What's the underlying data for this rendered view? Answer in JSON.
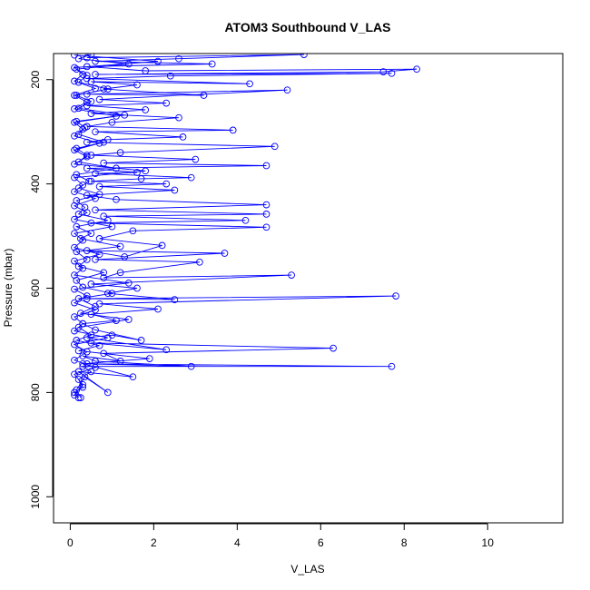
{
  "chart_data": {
    "type": "line",
    "title": "ATOM3 Southbound V_LAS",
    "xlabel": "V_LAS",
    "ylabel": "Pressure (mbar)",
    "xlim": [
      -0.4,
      11.8
    ],
    "ylim": [
      1050,
      150
    ],
    "y_inverted": true,
    "x_ticks": [
      0,
      2,
      4,
      6,
      8,
      10
    ],
    "y_ticks": [
      200,
      400,
      600,
      800,
      1000
    ],
    "grid": false,
    "marker": "open-circle",
    "series_color": "#0000ff",
    "series": [
      {
        "points": [
          [
            0.2,
            810
          ],
          [
            0.1,
            800
          ],
          [
            0.3,
            790
          ],
          [
            0.2,
            775
          ],
          [
            0.5,
            760
          ],
          [
            0.3,
            750
          ],
          [
            7.7,
            750
          ],
          [
            0.4,
            745
          ],
          [
            2.9,
            750
          ],
          [
            0.6,
            740
          ],
          [
            0.3,
            730
          ],
          [
            1.2,
            740
          ],
          [
            0.8,
            725
          ],
          [
            6.3,
            715
          ],
          [
            0.5,
            705
          ],
          [
            2.3,
            718
          ],
          [
            0.4,
            695
          ],
          [
            1.0,
            690
          ],
          [
            1.7,
            700
          ],
          [
            0.6,
            680
          ],
          [
            0.3,
            668
          ],
          [
            1.1,
            662
          ],
          [
            0.5,
            650
          ],
          [
            2.1,
            640
          ],
          [
            0.7,
            630
          ],
          [
            7.8,
            615
          ],
          [
            0.4,
            620
          ],
          [
            2.5,
            622
          ],
          [
            0.9,
            610
          ],
          [
            1.6,
            600
          ],
          [
            0.5,
            592
          ],
          [
            5.3,
            575
          ],
          [
            0.8,
            580
          ],
          [
            1.2,
            570
          ],
          [
            3.1,
            550
          ],
          [
            0.6,
            545
          ],
          [
            3.7,
            533
          ],
          [
            0.4,
            528
          ],
          [
            1.3,
            540
          ],
          [
            2.2,
            518
          ],
          [
            0.7,
            505
          ],
          [
            1.5,
            490
          ],
          [
            4.7,
            483
          ],
          [
            0.5,
            475
          ],
          [
            4.2,
            470
          ],
          [
            0.8,
            462
          ],
          [
            4.7,
            458
          ],
          [
            0.6,
            450
          ],
          [
            4.7,
            440
          ],
          [
            1.1,
            430
          ],
          [
            0.4,
            422
          ],
          [
            2.5,
            412
          ],
          [
            0.7,
            405
          ],
          [
            2.3,
            400
          ],
          [
            0.5,
            395
          ],
          [
            1.7,
            390
          ],
          [
            2.9,
            388
          ],
          [
            0.6,
            380
          ],
          [
            1.6,
            378
          ],
          [
            0.4,
            370
          ],
          [
            4.7,
            365
          ],
          [
            0.8,
            360
          ],
          [
            3.0,
            353
          ],
          [
            0.5,
            345
          ],
          [
            1.2,
            340
          ],
          [
            4.9,
            328
          ],
          [
            0.4,
            320
          ],
          [
            0.9,
            315
          ],
          [
            2.7,
            310
          ],
          [
            0.6,
            300
          ],
          [
            3.9,
            297
          ],
          [
            0.4,
            290
          ],
          [
            1.0,
            282
          ],
          [
            2.6,
            273
          ],
          [
            0.5,
            265
          ],
          [
            1.8,
            258
          ],
          [
            0.4,
            250
          ],
          [
            2.3,
            245
          ],
          [
            0.7,
            238
          ],
          [
            5.2,
            220
          ],
          [
            0.4,
            228
          ],
          [
            3.2,
            230
          ],
          [
            0.8,
            218
          ],
          [
            1.6,
            210
          ],
          [
            0.5,
            204
          ],
          [
            4.3,
            208
          ],
          [
            0.4,
            198
          ],
          [
            2.4,
            193
          ],
          [
            7.7,
            188
          ],
          [
            0.6,
            190
          ],
          [
            7.5,
            185
          ],
          [
            8.3,
            180
          ],
          [
            1.8,
            183
          ],
          [
            0.4,
            175
          ],
          [
            3.4,
            170
          ],
          [
            0.6,
            165
          ],
          [
            2.6,
            160
          ],
          [
            5.6,
            152
          ],
          [
            0.4,
            158
          ]
        ]
      },
      {
        "points": [
          [
            0.25,
            810
          ],
          [
            0.15,
            795
          ],
          [
            0.35,
            770
          ],
          [
            0.9,
            800
          ],
          [
            0.2,
            760
          ],
          [
            1.5,
            770
          ],
          [
            0.3,
            745
          ],
          [
            1.9,
            735
          ],
          [
            0.2,
            720
          ],
          [
            0.7,
            710
          ],
          [
            0.15,
            700
          ],
          [
            0.5,
            690
          ],
          [
            0.2,
            675
          ],
          [
            1.4,
            660
          ],
          [
            0.25,
            648
          ],
          [
            0.6,
            635
          ],
          [
            0.2,
            620
          ],
          [
            1.0,
            610
          ],
          [
            0.3,
            598
          ],
          [
            0.15,
            585
          ],
          [
            0.8,
            570
          ],
          [
            0.2,
            558
          ],
          [
            0.4,
            545
          ],
          [
            0.15,
            530
          ],
          [
            1.2,
            520
          ],
          [
            0.25,
            505
          ],
          [
            0.5,
            495
          ],
          [
            0.15,
            482
          ],
          [
            0.9,
            470
          ],
          [
            0.2,
            458
          ],
          [
            0.35,
            445
          ],
          [
            0.15,
            432
          ],
          [
            0.7,
            420
          ],
          [
            0.2,
            408
          ],
          [
            0.45,
            395
          ],
          [
            0.15,
            382
          ],
          [
            1.1,
            370
          ],
          [
            0.2,
            358
          ],
          [
            0.4,
            345
          ],
          [
            0.15,
            332
          ],
          [
            0.8,
            320
          ],
          [
            0.2,
            305
          ],
          [
            0.35,
            292
          ],
          [
            0.15,
            280
          ],
          [
            1.3,
            268
          ],
          [
            0.2,
            255
          ],
          [
            0.5,
            242
          ],
          [
            0.15,
            230
          ],
          [
            0.9,
            218
          ],
          [
            0.2,
            205
          ],
          [
            0.4,
            192
          ],
          [
            0.15,
            180
          ],
          [
            1.4,
            170
          ],
          [
            0.2,
            160
          ],
          [
            0.5,
            152
          ]
        ]
      },
      {
        "points": [
          [
            0.1,
            805
          ],
          [
            0.3,
            785
          ],
          [
            0.1,
            765
          ],
          [
            0.6,
            752
          ],
          [
            0.1,
            738
          ],
          [
            0.4,
            722
          ],
          [
            0.1,
            708
          ],
          [
            0.9,
            695
          ],
          [
            0.1,
            682
          ],
          [
            0.3,
            668
          ],
          [
            0.1,
            655
          ],
          [
            0.6,
            642
          ],
          [
            0.1,
            628
          ],
          [
            0.4,
            615
          ],
          [
            0.1,
            602
          ],
          [
            1.4,
            590
          ],
          [
            0.1,
            575
          ],
          [
            0.3,
            562
          ],
          [
            0.1,
            548
          ],
          [
            0.7,
            535
          ],
          [
            0.1,
            522
          ],
          [
            0.3,
            508
          ],
          [
            0.1,
            495
          ],
          [
            1.0,
            482
          ],
          [
            0.1,
            468
          ],
          [
            0.4,
            455
          ],
          [
            0.1,
            442
          ],
          [
            0.6,
            428
          ],
          [
            0.1,
            415
          ],
          [
            0.3,
            402
          ],
          [
            0.1,
            388
          ],
          [
            1.8,
            375
          ],
          [
            0.1,
            362
          ],
          [
            0.4,
            348
          ],
          [
            0.1,
            335
          ],
          [
            0.7,
            322
          ],
          [
            0.1,
            308
          ],
          [
            0.3,
            295
          ],
          [
            0.1,
            282
          ],
          [
            1.1,
            270
          ],
          [
            0.1,
            256
          ],
          [
            0.4,
            243
          ],
          [
            0.1,
            230
          ],
          [
            0.6,
            217
          ],
          [
            0.1,
            203
          ],
          [
            0.3,
            190
          ],
          [
            0.1,
            177
          ],
          [
            2.1,
            165
          ],
          [
            0.1,
            153
          ]
        ]
      }
    ]
  }
}
